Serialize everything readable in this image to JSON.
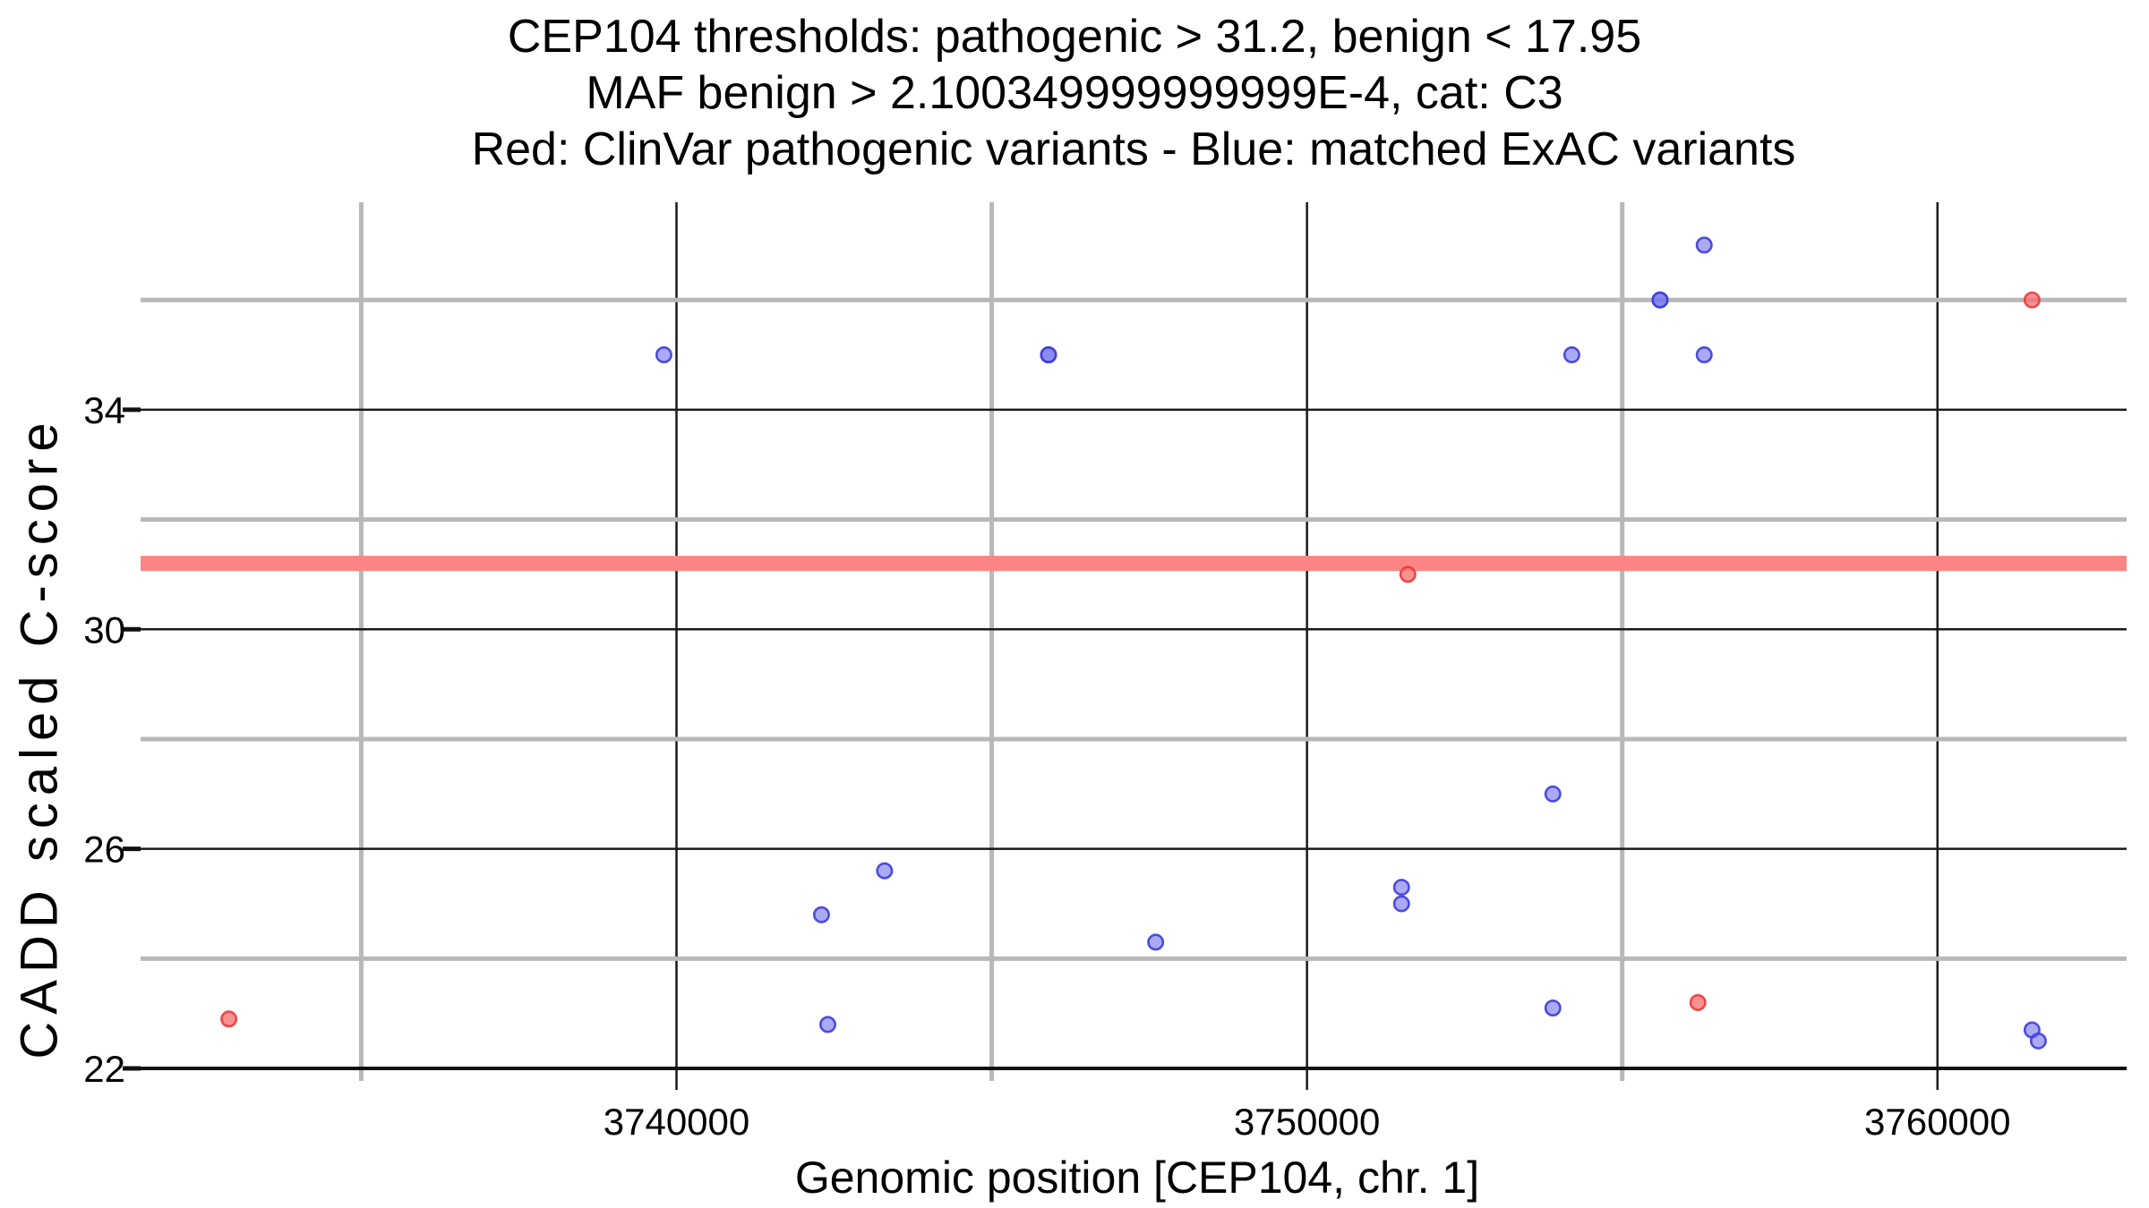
{
  "title": {
    "line1": "CEP104 thresholds: pathogenic > 31.2, benign < 17.95",
    "line2": "MAF benign > 2.100349999999999E-4, cat: C3",
    "line3": "Red: ClinVar pathogenic variants - Blue: matched ExAC variants"
  },
  "chart_data": {
    "type": "scatter",
    "title": "CEP104 thresholds: pathogenic > 31.2, benign < 17.95 | MAF benign > 2.100349999999999E-4, cat: C3",
    "subtitle": "Red: ClinVar pathogenic variants - Blue: matched ExAC variants",
    "xlabel": "Genomic position [CEP104, chr. 1]",
    "ylabel": "CADD scaled C-score",
    "xlim": [
      3731500,
      3763000
    ],
    "ylim": [
      22,
      37.78
    ],
    "x_ticks": [
      3740000,
      3750000,
      3760000
    ],
    "x_minor_gridlines": [
      3735000,
      3745000,
      3755000
    ],
    "y_ticks": [
      34,
      30,
      26,
      22
    ],
    "y_minor_gridlines": [
      36,
      32,
      28,
      24
    ],
    "grid": true,
    "legend_position": "none (encoded in subtitle)",
    "thresholds": {
      "pathogenic": 31.2,
      "benign": 17.95,
      "maf_benign": "2.100349999999999E-4",
      "category": "C3",
      "band_value": 31.2,
      "band_color": "#fb8585"
    },
    "colors": {
      "minor_grid": "#b8b8b8",
      "major_grid": "#1a1a1a",
      "axis_line": "#111111",
      "pathogenic_point": "#f87272",
      "exac_point": "#7676ee"
    },
    "series": [
      {
        "name": "ClinVar pathogenic variants",
        "role": "pathogenic",
        "fill": "#f87272",
        "stroke": "#e93a3a",
        "fill_opacity": 0.78,
        "points": [
          {
            "x": 3732900,
            "y": 22.9
          },
          {
            "x": 3751600,
            "y": 31.0
          },
          {
            "x": 3756200,
            "y": 23.2
          },
          {
            "x": 3761500,
            "y": 36.0
          }
        ]
      },
      {
        "name": "matched ExAC variants",
        "role": "exac",
        "fill": "#7676ee",
        "stroke": "#3c3cdc",
        "fill_opacity": 0.62,
        "points": [
          {
            "x": 3739800,
            "y": 35.0
          },
          {
            "x": 3742300,
            "y": 24.8
          },
          {
            "x": 3742400,
            "y": 22.8
          },
          {
            "x": 3743300,
            "y": 25.6
          },
          {
            "x": 3745900,
            "y": 35.0,
            "n": 2
          },
          {
            "x": 3747600,
            "y": 24.3
          },
          {
            "x": 3751500,
            "y": 25.3
          },
          {
            "x": 3751500,
            "y": 25.0
          },
          {
            "x": 3753900,
            "y": 27.0
          },
          {
            "x": 3753900,
            "y": 23.1
          },
          {
            "x": 3754200,
            "y": 35.0
          },
          {
            "x": 3755600,
            "y": 36.0,
            "n": 2
          },
          {
            "x": 3756300,
            "y": 37.0
          },
          {
            "x": 3756300,
            "y": 35.0
          },
          {
            "x": 3761500,
            "y": 22.7
          },
          {
            "x": 3761600,
            "y": 22.5
          }
        ]
      }
    ]
  }
}
